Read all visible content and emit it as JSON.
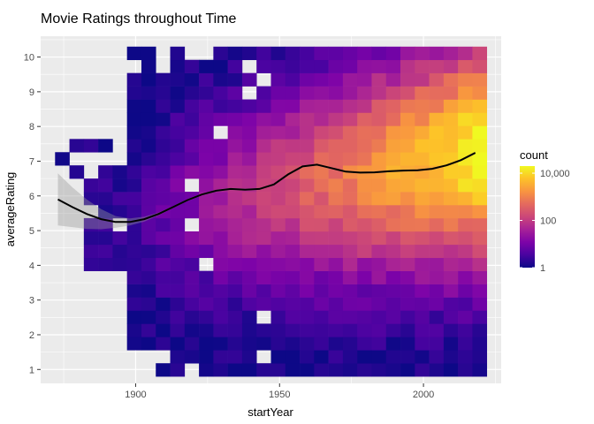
{
  "chart_data": {
    "type": "heatmap",
    "title": "Movie Ratings throughout Time",
    "xlabel": "startYear",
    "ylabel": "averageRating",
    "xlim": [
      1867,
      2027
    ],
    "ylim": [
      0.6,
      10.6
    ],
    "x_ticks": [
      1900,
      1950,
      2000
    ],
    "y_ticks": [
      1,
      2,
      3,
      4,
      5,
      6,
      7,
      8,
      9,
      10
    ],
    "bin_width_years": 5,
    "bin_height_rating": 0.38,
    "x_bin_starts": [
      1872,
      1877,
      1882,
      1887,
      1892,
      1897,
      1902,
      1907,
      1912,
      1917,
      1922,
      1927,
      1932,
      1937,
      1942,
      1947,
      1952,
      1957,
      1962,
      1967,
      1972,
      1977,
      1982,
      1987,
      1992,
      1997,
      2002,
      2007,
      2012,
      2017
    ],
    "fill_scale": {
      "type": "log10",
      "palette": "plasma",
      "min": 1,
      "max": 20000
    },
    "legend": {
      "title": "count",
      "labels": [
        "10,000",
        "100",
        "1"
      ],
      "values": [
        10000,
        100,
        1
      ],
      "position": "right"
    },
    "smooth": {
      "type": "loess with confidence band",
      "x": [
        1873,
        1878,
        1883,
        1888,
        1893,
        1898,
        1903,
        1908,
        1913,
        1918,
        1923,
        1928,
        1933,
        1938,
        1943,
        1948,
        1953,
        1958,
        1963,
        1968,
        1973,
        1978,
        1983,
        1988,
        1993,
        1998,
        2003,
        2008,
        2013,
        2018
      ],
      "y": [
        5.9,
        5.68,
        5.48,
        5.33,
        5.25,
        5.25,
        5.33,
        5.48,
        5.68,
        5.88,
        6.04,
        6.15,
        6.2,
        6.18,
        6.2,
        6.33,
        6.62,
        6.85,
        6.9,
        6.8,
        6.7,
        6.67,
        6.68,
        6.71,
        6.73,
        6.74,
        6.78,
        6.88,
        7.03,
        7.24
      ],
      "ci_upper": [
        6.65,
        6.25,
        5.9,
        5.62,
        5.42,
        5.35,
        5.4,
        5.52,
        5.71,
        5.91,
        6.07,
        6.18,
        6.23,
        6.21,
        6.23,
        6.36,
        6.65,
        6.88,
        6.93,
        6.83,
        6.73,
        6.7,
        6.71,
        6.74,
        6.76,
        6.77,
        6.81,
        6.91,
        7.06,
        7.28
      ],
      "ci_lower": [
        5.15,
        5.1,
        5.05,
        5.04,
        5.08,
        5.15,
        5.26,
        5.44,
        5.65,
        5.85,
        6.01,
        6.12,
        6.17,
        6.15,
        6.17,
        6.3,
        6.59,
        6.82,
        6.87,
        6.77,
        6.67,
        6.64,
        6.65,
        6.68,
        6.7,
        6.71,
        6.75,
        6.85,
        7.0,
        7.2
      ]
    },
    "grid": true,
    "background": "#ebebeb",
    "colors": {
      "panel": "#ebebeb",
      "grid": "#ffffff",
      "smooth_line": "#000000",
      "ci_band": "#999999"
    }
  }
}
